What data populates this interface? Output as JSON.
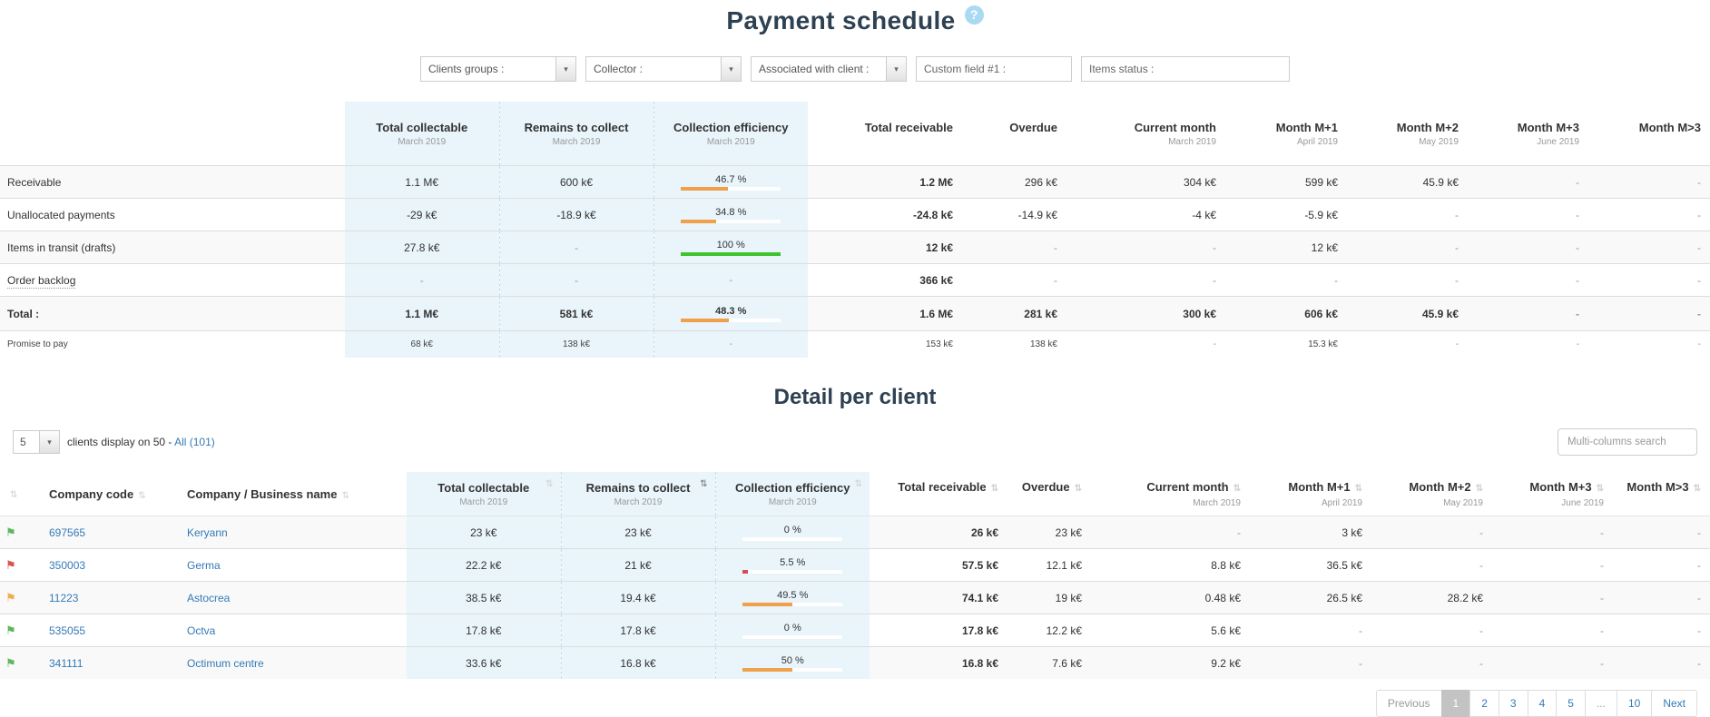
{
  "page": {
    "title": "Payment schedule",
    "help_glyph": "?",
    "detail_title": "Detail per client"
  },
  "colors": {
    "title": "#2e4153",
    "highlight_bg": "#e9f4fb",
    "link": "#337ab7",
    "bar_orange": "#f0a04a",
    "bar_green": "#3fc32f",
    "bar_red": "#dc4b4b",
    "flag_green": "#5cb85c",
    "flag_red": "#d9534f",
    "flag_orange": "#f0ad4e"
  },
  "filters": {
    "dropdowns": [
      {
        "name": "clients-groups-filter",
        "label": "Clients groups :"
      },
      {
        "name": "collector-filter",
        "label": "Collector :"
      },
      {
        "name": "associated-with-client-filter",
        "label": "Associated with client :"
      }
    ],
    "inputs": [
      {
        "name": "custom-field-1-filter",
        "placeholder": "Custom field #1 :"
      },
      {
        "name": "items-status-filter",
        "placeholder": "Items status :"
      }
    ]
  },
  "schedule_table": {
    "columns_highlight": [
      {
        "label": "Total collectable",
        "sub": "March 2019"
      },
      {
        "label": "Remains to collect",
        "sub": "March 2019"
      },
      {
        "label": "Collection efficiency",
        "sub": "March 2019"
      }
    ],
    "columns_plain": [
      {
        "label": "Total receivable",
        "sub": ""
      },
      {
        "label": "Overdue",
        "sub": ""
      },
      {
        "label": "Current month",
        "sub": "March 2019"
      },
      {
        "label": "Month M+1",
        "sub": "April 2019"
      },
      {
        "label": "Month M+2",
        "sub": "May 2019"
      },
      {
        "label": "Month M+3",
        "sub": "June 2019"
      },
      {
        "label": "Month M>3",
        "sub": ""
      }
    ],
    "rows": [
      {
        "label": "Receivable",
        "kind": "normal",
        "highlight": [
          "1.1 M€",
          "600 k€"
        ],
        "efficiency": {
          "text": "46.7 %",
          "pct": 46.7,
          "tone": "orange"
        },
        "plain": [
          "1.2 M€",
          "296 k€",
          "304 k€",
          "599 k€",
          "45.9 k€",
          "-",
          "-"
        ]
      },
      {
        "label": "Unallocated payments",
        "kind": "normal",
        "highlight": [
          "-29 k€",
          "-18.9 k€"
        ],
        "efficiency": {
          "text": "34.8 %",
          "pct": 34.8,
          "tone": "orange"
        },
        "plain": [
          "-24.8 k€",
          "-14.9 k€",
          "-4 k€",
          "-5.9 k€",
          "-",
          "-",
          "-"
        ]
      },
      {
        "label": "Items in transit (drafts)",
        "kind": "normal",
        "label_dotted": false,
        "highlight": [
          "27.8 k€",
          "-"
        ],
        "efficiency": {
          "text": "100 %",
          "pct": 100,
          "tone": "green"
        },
        "plain": [
          "12 k€",
          "-",
          "-",
          "12 k€",
          "-",
          "-",
          "-"
        ]
      },
      {
        "label": "Order backlog",
        "kind": "normal",
        "label_dotted": true,
        "highlight": [
          "-",
          "-"
        ],
        "efficiency": {
          "text": "-"
        },
        "plain": [
          "366 k€",
          "-",
          "-",
          "-",
          "-",
          "-",
          "-"
        ]
      },
      {
        "label": "Total :",
        "kind": "total",
        "highlight": [
          "1.1 M€",
          "581 k€"
        ],
        "efficiency": {
          "text": "48.3 %",
          "pct": 48.3,
          "tone": "orange"
        },
        "plain": [
          "1.6 M€",
          "281 k€",
          "300 k€",
          "606 k€",
          "45.9 k€",
          "-",
          "-"
        ]
      },
      {
        "label": "Promise to pay",
        "kind": "promise",
        "highlight": [
          "68 k€",
          "138 k€"
        ],
        "efficiency": {
          "text": "-"
        },
        "plain": [
          "153 k€",
          "138 k€",
          "-",
          "15.3 k€",
          "-",
          "-",
          "-"
        ]
      }
    ]
  },
  "detail_controls": {
    "page_length": "5",
    "display_text": "clients display on 50 -",
    "all_link_label": "All (101)",
    "search_placeholder": "Multi-columns search"
  },
  "detail_table": {
    "columns_first": [
      {
        "label": "",
        "sort": "both"
      },
      {
        "label": "Company code",
        "sort": "both"
      },
      {
        "label": "Company / Business name",
        "sort": "both"
      }
    ],
    "columns_highlight": [
      {
        "label": "Total collectable",
        "sub": "March 2019",
        "sort": "both"
      },
      {
        "label": "Remains to collect",
        "sub": "March 2019",
        "sort": "desc"
      },
      {
        "label": "Collection efficiency",
        "sub": "March 2019",
        "sort": "both"
      }
    ],
    "columns_plain": [
      {
        "label": "Total receivable",
        "sub": "",
        "sort": "both"
      },
      {
        "label": "Overdue",
        "sub": "",
        "sort": "both"
      },
      {
        "label": "Current month",
        "sub": "March 2019",
        "sort": "both"
      },
      {
        "label": "Month M+1",
        "sub": "April 2019",
        "sort": "both"
      },
      {
        "label": "Month M+2",
        "sub": "May 2019",
        "sort": "both"
      },
      {
        "label": "Month M+3",
        "sub": "June 2019",
        "sort": "both"
      },
      {
        "label": "Month M>3",
        "sub": "",
        "sort": "both"
      }
    ],
    "rows": [
      {
        "flag": "green",
        "code": "697565",
        "name": "Keryann",
        "highlight": [
          "23 k€",
          "23 k€"
        ],
        "efficiency": {
          "text": "0 %",
          "pct": 0,
          "tone": "orange"
        },
        "plain": [
          "26 k€",
          "23 k€",
          "-",
          "3 k€",
          "-",
          "-",
          "-"
        ]
      },
      {
        "flag": "red",
        "code": "350003",
        "name": "Germa",
        "highlight": [
          "22.2 k€",
          "21 k€"
        ],
        "efficiency": {
          "text": "5.5 %",
          "pct": 5.5,
          "tone": "red"
        },
        "plain": [
          "57.5 k€",
          "12.1 k€",
          "8.8 k€",
          "36.5 k€",
          "-",
          "-",
          "-"
        ]
      },
      {
        "flag": "orange",
        "code": "11223",
        "name": "Astocrea",
        "highlight": [
          "38.5 k€",
          "19.4 k€"
        ],
        "efficiency": {
          "text": "49.5 %",
          "pct": 49.5,
          "tone": "orange"
        },
        "plain": [
          "74.1 k€",
          "19 k€",
          "0.48 k€",
          "26.5 k€",
          "28.2 k€",
          "-",
          "-"
        ]
      },
      {
        "flag": "green",
        "code": "535055",
        "name": "Octva",
        "highlight": [
          "17.8 k€",
          "17.8 k€"
        ],
        "efficiency": {
          "text": "0 %",
          "pct": 0,
          "tone": "orange"
        },
        "plain": [
          "17.8 k€",
          "12.2 k€",
          "5.6 k€",
          "-",
          "-",
          "-",
          "-"
        ]
      },
      {
        "flag": "green",
        "code": "341111",
        "name": "Octimum centre",
        "highlight": [
          "33.6 k€",
          "16.8 k€"
        ],
        "efficiency": {
          "text": "50 %",
          "pct": 50,
          "tone": "orange"
        },
        "plain": [
          "16.8 k€",
          "7.6 k€",
          "9.2 k€",
          "-",
          "-",
          "-",
          "-"
        ]
      }
    ]
  },
  "pagination": {
    "previous_label": "Previous",
    "next_label": "Next",
    "pages": [
      "1",
      "2",
      "3",
      "4",
      "5",
      "...",
      "10"
    ],
    "active_page": "1"
  },
  "icons": {
    "sort_glyph": "⇅",
    "flag_glyph": "⚑",
    "select_arrow_glyph": "▾"
  }
}
